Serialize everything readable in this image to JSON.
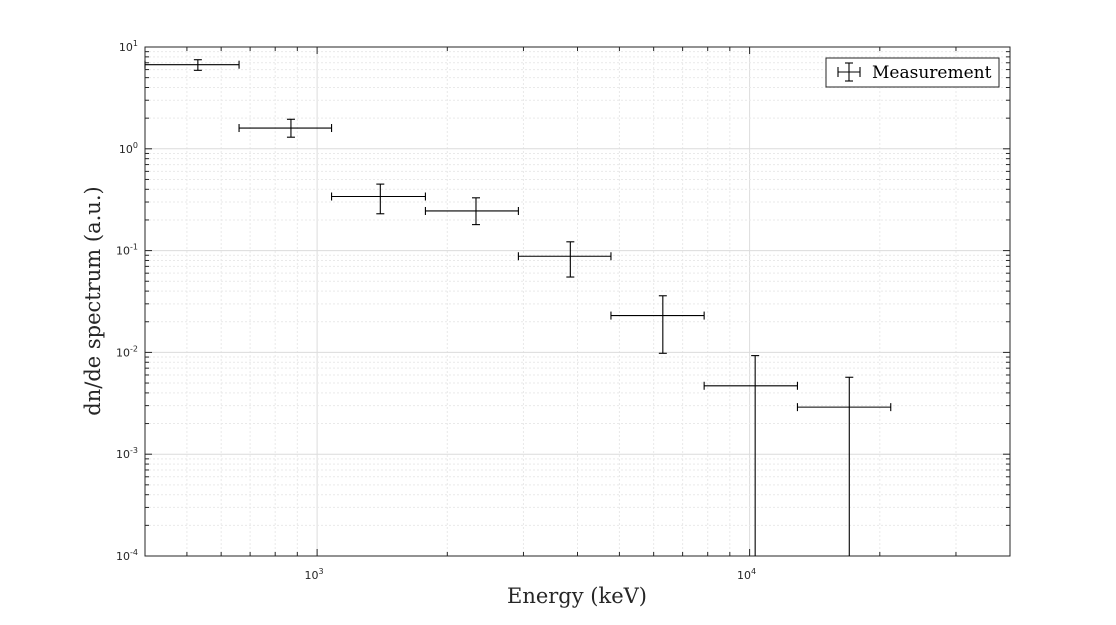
{
  "chart_data": {
    "type": "errorbar",
    "xlabel": "Energy (keV)",
    "ylabel": "dn/de spectrum (a.u.)",
    "x_scale": "log",
    "y_scale": "log",
    "xlim": [
      400,
      40000
    ],
    "ylim": [
      0.0001,
      10
    ],
    "x_ticks": [
      {
        "base": "10",
        "exp": "3",
        "value": 1000
      },
      {
        "base": "10",
        "exp": "4",
        "value": 10000
      }
    ],
    "y_ticks": [
      {
        "base": "10",
        "exp": "1",
        "value": 10
      },
      {
        "base": "10",
        "exp": "0",
        "value": 1
      },
      {
        "base": "10",
        "exp": "-1",
        "value": 0.1
      },
      {
        "base": "10",
        "exp": "-2",
        "value": 0.01
      },
      {
        "base": "10",
        "exp": "-3",
        "value": 0.001
      },
      {
        "base": "10",
        "exp": "-4",
        "value": 0.0001
      }
    ],
    "grid": true,
    "legend": {
      "placement": "top-right",
      "entries": [
        "Measurement"
      ]
    },
    "series": [
      {
        "name": "Measurement",
        "color": "#000000",
        "points": [
          {
            "x": 530,
            "x_low": 400,
            "x_high": 660,
            "y": 6.7,
            "y_low": 5.9,
            "y_high": 7.5
          },
          {
            "x": 870,
            "x_low": 660,
            "x_high": 1080,
            "y": 1.6,
            "y_low": 1.3,
            "y_high": 1.95
          },
          {
            "x": 1400,
            "x_low": 1080,
            "x_high": 1780,
            "y": 0.34,
            "y_low": 0.23,
            "y_high": 0.45
          },
          {
            "x": 2330,
            "x_low": 1780,
            "x_high": 2920,
            "y": 0.245,
            "y_low": 0.18,
            "y_high": 0.33
          },
          {
            "x": 3850,
            "x_low": 2920,
            "x_high": 4780,
            "y": 0.088,
            "y_low": 0.055,
            "y_high": 0.122
          },
          {
            "x": 6300,
            "x_low": 4780,
            "x_high": 7850,
            "y": 0.023,
            "y_low": 0.0098,
            "y_high": 0.036
          },
          {
            "x": 10300,
            "x_low": 7850,
            "x_high": 12900,
            "y": 0.0047,
            "y_low": 0.0001,
            "y_high": 0.0093
          },
          {
            "x": 17000,
            "x_low": 12900,
            "x_high": 21200,
            "y": 0.0029,
            "y_low": 0.0001,
            "y_high": 0.0057
          }
        ]
      }
    ]
  }
}
